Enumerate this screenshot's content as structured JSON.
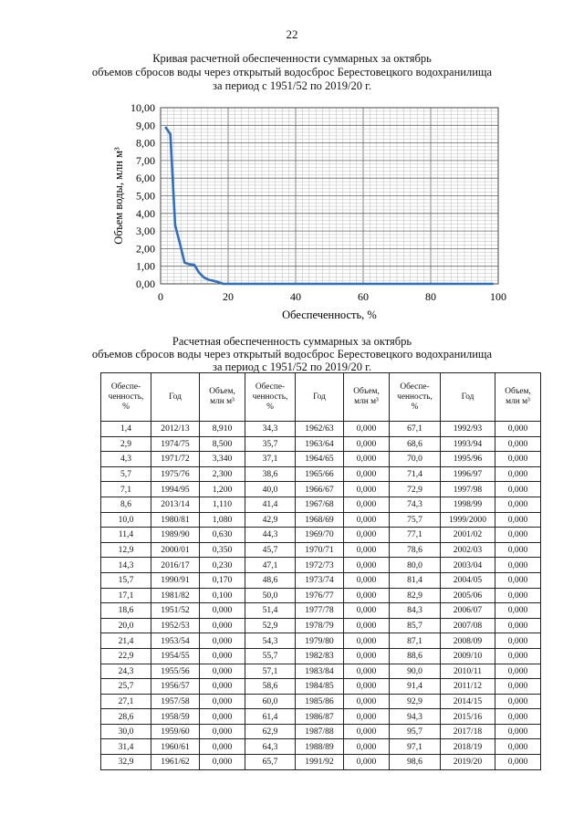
{
  "page_number": "22",
  "chart_title": [
    "Кривая расчетной обеспеченности суммарных за октябрь",
    "объемов сбросов воды через открытый водосброс Берестовецкого водохранилища",
    "за период с 1951/52 по 2019/20 г."
  ],
  "chart_data": {
    "type": "line",
    "xlabel": "Обеспеченность, %",
    "ylabel": "Объем воды, млн м³",
    "xlim": [
      0,
      100
    ],
    "ylim": [
      0,
      10
    ],
    "x_ticks": [
      "0",
      "20",
      "40",
      "60",
      "80",
      "100"
    ],
    "y_ticks": [
      "0,00",
      "1,00",
      "2,00",
      "3,00",
      "4,00",
      "5,00",
      "6,00",
      "7,00",
      "8,00",
      "9,00",
      "10,00"
    ],
    "grid": true,
    "line_color": "#2f6fc0",
    "series": [
      {
        "x": [
          1.4,
          2.9,
          4.3,
          5.7,
          7.1,
          8.6,
          10.0,
          11.4,
          12.9,
          14.3,
          15.7,
          17.1,
          18.6,
          98.6
        ],
        "values": [
          8.91,
          8.5,
          3.34,
          2.3,
          1.2,
          1.11,
          1.08,
          0.63,
          0.35,
          0.23,
          0.17,
          0.1,
          0.0,
          0.0
        ]
      }
    ]
  },
  "table_title": [
    "Расчетная обеспеченность суммарных за октябрь",
    "объемов сбросов воды через открытый водосброс Берестовецкого водохранилища",
    "за период с 1951/52 по 2019/20 г."
  ],
  "table": {
    "headers": [
      "Обеспе-\nченность,\n%",
      "Год",
      "Объем,\nмлн м³",
      "Обеспе-\nченность,\n%",
      "Год",
      "Объем,\nмлн м³",
      "Обеспе-\nченность,\n%",
      "Год",
      "Объем,\nмлн м³"
    ],
    "rows": [
      [
        "1,4",
        "2012/13",
        "8,910",
        "34,3",
        "1962/63",
        "0,000",
        "67,1",
        "1992/93",
        "0,000"
      ],
      [
        "2,9",
        "1974/75",
        "8,500",
        "35,7",
        "1963/64",
        "0,000",
        "68,6",
        "1993/94",
        "0,000"
      ],
      [
        "4,3",
        "1971/72",
        "3,340",
        "37,1",
        "1964/65",
        "0,000",
        "70,0",
        "1995/96",
        "0,000"
      ],
      [
        "5,7",
        "1975/76",
        "2,300",
        "38,6",
        "1965/66",
        "0,000",
        "71,4",
        "1996/97",
        "0,000"
      ],
      [
        "7,1",
        "1994/95",
        "1,200",
        "40,0",
        "1966/67",
        "0,000",
        "72,9",
        "1997/98",
        "0,000"
      ],
      [
        "8,6",
        "2013/14",
        "1,110",
        "41,4",
        "1967/68",
        "0,000",
        "74,3",
        "1998/99",
        "0,000"
      ],
      [
        "10,0",
        "1980/81",
        "1,080",
        "42,9",
        "1968/69",
        "0,000",
        "75,7",
        "1999/2000",
        "0,000"
      ],
      [
        "11,4",
        "1989/90",
        "0,630",
        "44,3",
        "1969/70",
        "0,000",
        "77,1",
        "2001/02",
        "0,000"
      ],
      [
        "12,9",
        "2000/01",
        "0,350",
        "45,7",
        "1970/71",
        "0,000",
        "78,6",
        "2002/03",
        "0,000"
      ],
      [
        "14,3",
        "2016/17",
        "0,230",
        "47,1",
        "1972/73",
        "0,000",
        "80,0",
        "2003/04",
        "0,000"
      ],
      [
        "15,7",
        "1990/91",
        "0,170",
        "48,6",
        "1973/74",
        "0,000",
        "81,4",
        "2004/05",
        "0,000"
      ],
      [
        "17,1",
        "1981/82",
        "0,100",
        "50,0",
        "1976/77",
        "0,000",
        "82,9",
        "2005/06",
        "0,000"
      ],
      [
        "18,6",
        "1951/52",
        "0,000",
        "51,4",
        "1977/78",
        "0,000",
        "84,3",
        "2006/07",
        "0,000"
      ],
      [
        "20,0",
        "1952/53",
        "0,000",
        "52,9",
        "1978/79",
        "0,000",
        "85,7",
        "2007/08",
        "0,000"
      ],
      [
        "21,4",
        "1953/54",
        "0,000",
        "54,3",
        "1979/80",
        "0,000",
        "87,1",
        "2008/09",
        "0,000"
      ],
      [
        "22,9",
        "1954/55",
        "0,000",
        "55,7",
        "1982/83",
        "0,000",
        "88,6",
        "2009/10",
        "0,000"
      ],
      [
        "24,3",
        "1955/56",
        "0,000",
        "57,1",
        "1983/84",
        "0,000",
        "90,0",
        "2010/11",
        "0,000"
      ],
      [
        "25,7",
        "1956/57",
        "0,000",
        "58,6",
        "1984/85",
        "0,000",
        "91,4",
        "2011/12",
        "0,000"
      ],
      [
        "27,1",
        "1957/58",
        "0,000",
        "60,0",
        "1985/86",
        "0,000",
        "92,9",
        "2014/15",
        "0,000"
      ],
      [
        "28,6",
        "1958/59",
        "0,000",
        "61,4",
        "1986/87",
        "0,000",
        "94,3",
        "2015/16",
        "0,000"
      ],
      [
        "30,0",
        "1959/60",
        "0,000",
        "62,9",
        "1987/88",
        "0,000",
        "95,7",
        "2017/18",
        "0,000"
      ],
      [
        "31,4",
        "1960/61",
        "0,000",
        "64,3",
        "1988/89",
        "0,000",
        "97,1",
        "2018/19",
        "0,000"
      ],
      [
        "32,9",
        "1961/62",
        "0,000",
        "65,7",
        "1991/92",
        "0,000",
        "98,6",
        "2019/20",
        "0,000"
      ]
    ]
  }
}
